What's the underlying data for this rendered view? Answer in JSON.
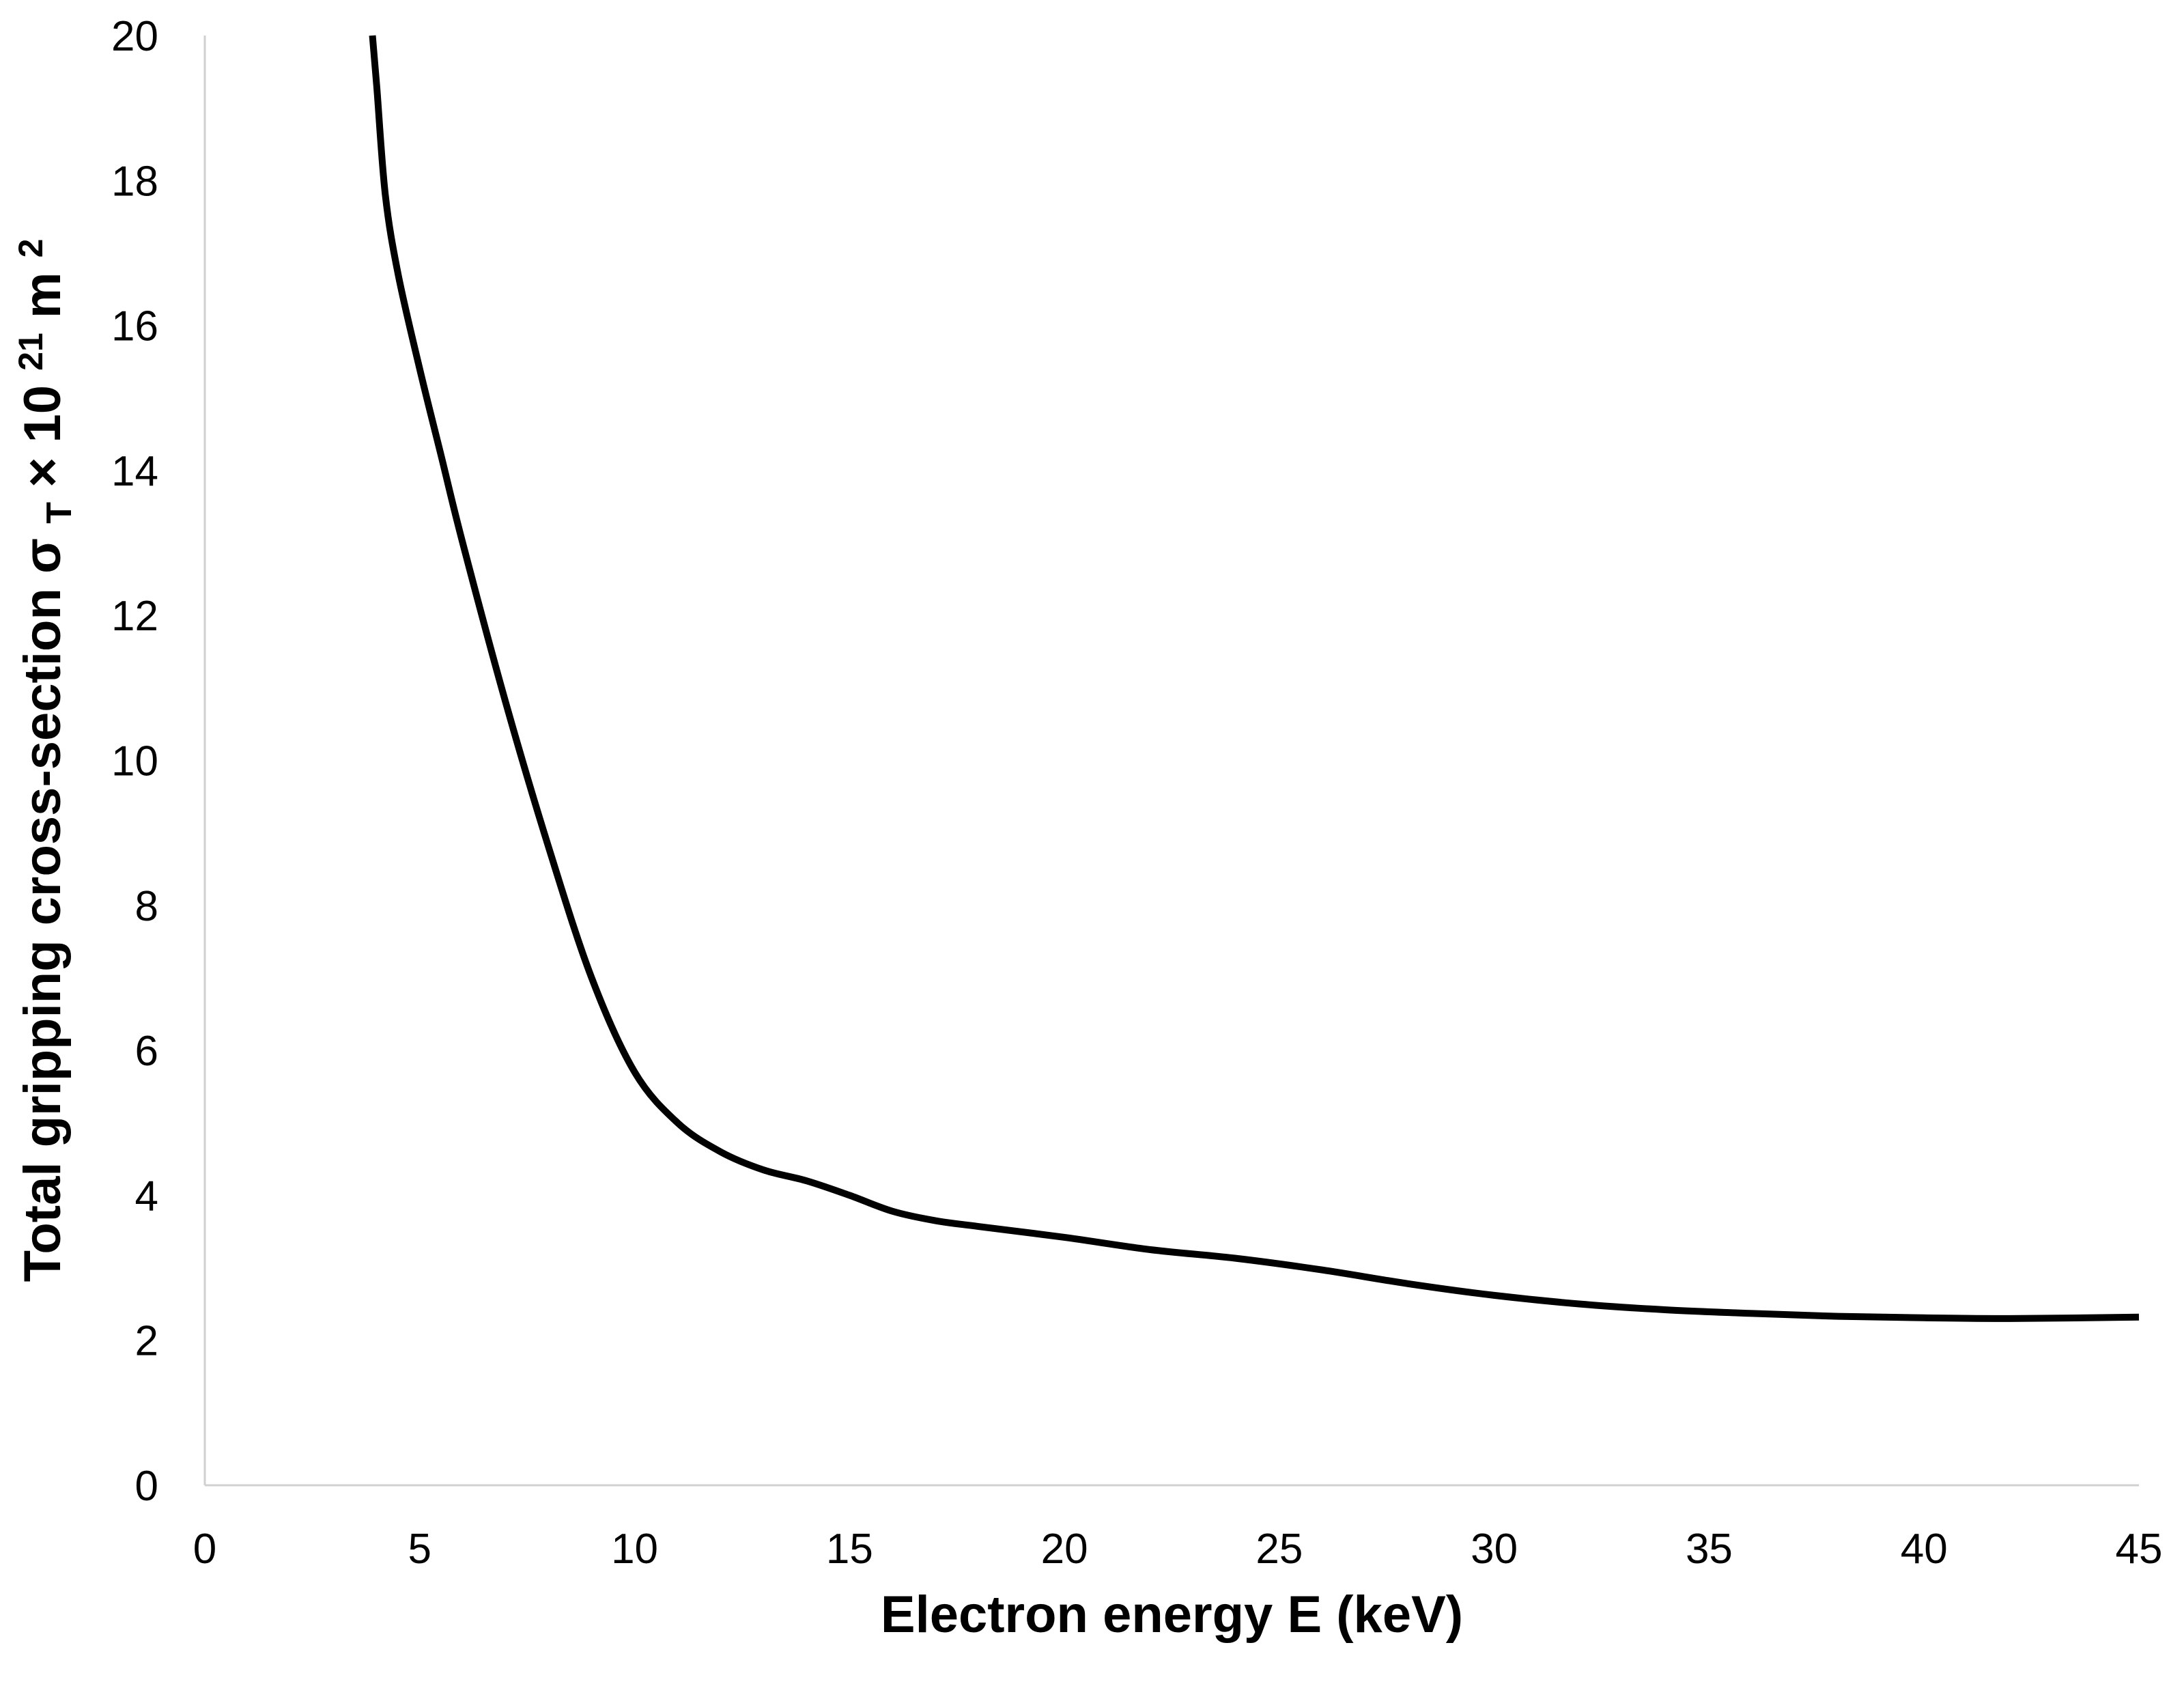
{
  "chart_data": {
    "type": "line",
    "xlabel": "Electron energy E (keV)",
    "ylabel": {
      "main": "Total gripping cross-section σ",
      "subscript": "T",
      "after": " × 10",
      "superscript_exp": "21",
      "unit": " m",
      "superscript_unit": "2"
    },
    "xlim": [
      0,
      45
    ],
    "ylim": [
      0,
      20
    ],
    "xticks": [
      0,
      5,
      10,
      15,
      20,
      25,
      30,
      35,
      40,
      45
    ],
    "yticks": [
      0,
      2,
      4,
      6,
      8,
      10,
      12,
      14,
      16,
      18,
      20
    ],
    "grid": false,
    "series": [
      {
        "color": "#000000",
        "points": [
          [
            3.9,
            20.0
          ],
          [
            4.0,
            19.3
          ],
          [
            4.2,
            17.8
          ],
          [
            4.5,
            16.7
          ],
          [
            5.0,
            15.4
          ],
          [
            5.5,
            14.2
          ],
          [
            6.0,
            13.0
          ],
          [
            7.0,
            10.8
          ],
          [
            8.0,
            8.8
          ],
          [
            9.0,
            7.0
          ],
          [
            10.0,
            5.7
          ],
          [
            11.0,
            5.0
          ],
          [
            12.0,
            4.6
          ],
          [
            13.0,
            4.35
          ],
          [
            14.0,
            4.2
          ],
          [
            15.0,
            4.0
          ],
          [
            16.0,
            3.78
          ],
          [
            17.0,
            3.65
          ],
          [
            18.0,
            3.57
          ],
          [
            20.0,
            3.42
          ],
          [
            22.0,
            3.25
          ],
          [
            24.0,
            3.13
          ],
          [
            26.0,
            2.97
          ],
          [
            28.0,
            2.78
          ],
          [
            30.0,
            2.62
          ],
          [
            32.0,
            2.5
          ],
          [
            34.0,
            2.42
          ],
          [
            36.0,
            2.37
          ],
          [
            38.0,
            2.33
          ],
          [
            40.0,
            2.31
          ],
          [
            42.0,
            2.3
          ],
          [
            45.0,
            2.32
          ]
        ]
      }
    ]
  }
}
